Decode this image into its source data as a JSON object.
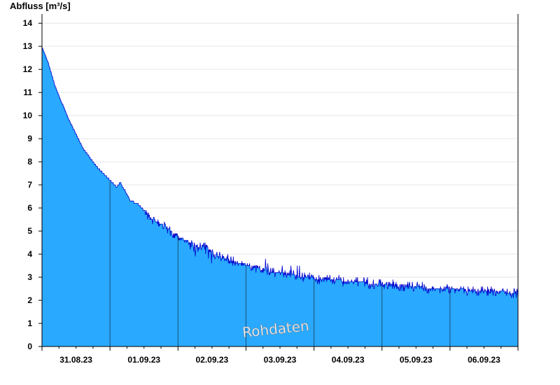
{
  "chart_data": {
    "type": "area",
    "ylabel": "Abfluss [m³/s]",
    "watermark": "Rohdaten",
    "ylim": [
      0,
      14.4
    ],
    "yticks": [
      0,
      1,
      2,
      3,
      4,
      5,
      6,
      7,
      8,
      9,
      10,
      11,
      12,
      13,
      14
    ],
    "xlim_days": [
      0,
      7
    ],
    "xtick_labels": [
      "31.08.23",
      "01.09.23",
      "02.09.23",
      "03.09.23",
      "04.09.23",
      "05.09.23",
      "06.09.23"
    ],
    "grid": "horizontal",
    "colors": {
      "fill": "#29a9ff",
      "line": "#0000cc",
      "divider": "#1a4f7a",
      "grid": "#e6e6e6",
      "axis": "#000000"
    },
    "series": [
      {
        "x_days": [
          0,
          0.05,
          0.1,
          0.2,
          0.3,
          0.4,
          0.5,
          0.6,
          0.7,
          0.8,
          0.9,
          1.0,
          1.1,
          1.15,
          1.25,
          1.3,
          1.4,
          1.5,
          1.6,
          1.7,
          1.8,
          1.9,
          2.0,
          2.1,
          2.2,
          2.3,
          2.4,
          2.5,
          2.6,
          2.7,
          2.8,
          2.9,
          3.0,
          3.2,
          3.4,
          3.6,
          3.8,
          4.0,
          4.2,
          4.4,
          4.6,
          4.8,
          5.0,
          5.2,
          5.4,
          5.6,
          5.8,
          6.0,
          6.2,
          6.4,
          6.6,
          6.8,
          7.0
        ],
        "y": [
          13.0,
          12.6,
          12.2,
          11.2,
          10.5,
          9.8,
          9.2,
          8.6,
          8.2,
          7.8,
          7.5,
          7.2,
          6.9,
          7.1,
          6.6,
          6.3,
          6.2,
          5.9,
          5.6,
          5.4,
          5.2,
          5.0,
          4.8,
          4.6,
          4.5,
          4.3,
          4.4,
          4.1,
          3.9,
          3.8,
          3.7,
          3.6,
          3.55,
          3.35,
          3.2,
          3.15,
          3.0,
          2.95,
          2.9,
          2.85,
          2.8,
          2.75,
          2.7,
          2.65,
          2.6,
          2.55,
          2.5,
          2.5,
          2.45,
          2.4,
          2.4,
          2.35,
          2.3
        ]
      }
    ]
  }
}
